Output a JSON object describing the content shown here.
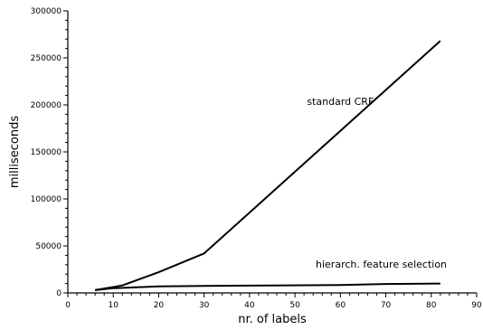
{
  "chart_data": {
    "type": "line",
    "title": "",
    "xlabel": "nr. of labels",
    "ylabel": "milliseconds",
    "xlim": [
      0,
      90
    ],
    "ylim": [
      0,
      300000
    ],
    "xticks": [
      0,
      10,
      20,
      30,
      40,
      50,
      60,
      70,
      80,
      90
    ],
    "yticks": [
      0,
      50000,
      100000,
      150000,
      200000,
      250000,
      300000
    ],
    "grid": false,
    "legend": "none",
    "series": [
      {
        "name": "standard CRF",
        "x": [
          6,
          12,
          20,
          30,
          82
        ],
        "y": [
          3000,
          8000,
          22000,
          42000,
          268000
        ]
      },
      {
        "name": "hierarch. feature selection",
        "x": [
          6,
          10,
          20,
          30,
          45,
          60,
          70,
          82
        ],
        "y": [
          3000,
          5000,
          7000,
          7500,
          8000,
          8500,
          9500,
          10000
        ]
      }
    ],
    "annotations": [
      {
        "text": "standard CRF",
        "x": 60,
        "y": 200000
      },
      {
        "text": "hierarch. feature selection",
        "x": 69,
        "y": 27000
      }
    ]
  }
}
